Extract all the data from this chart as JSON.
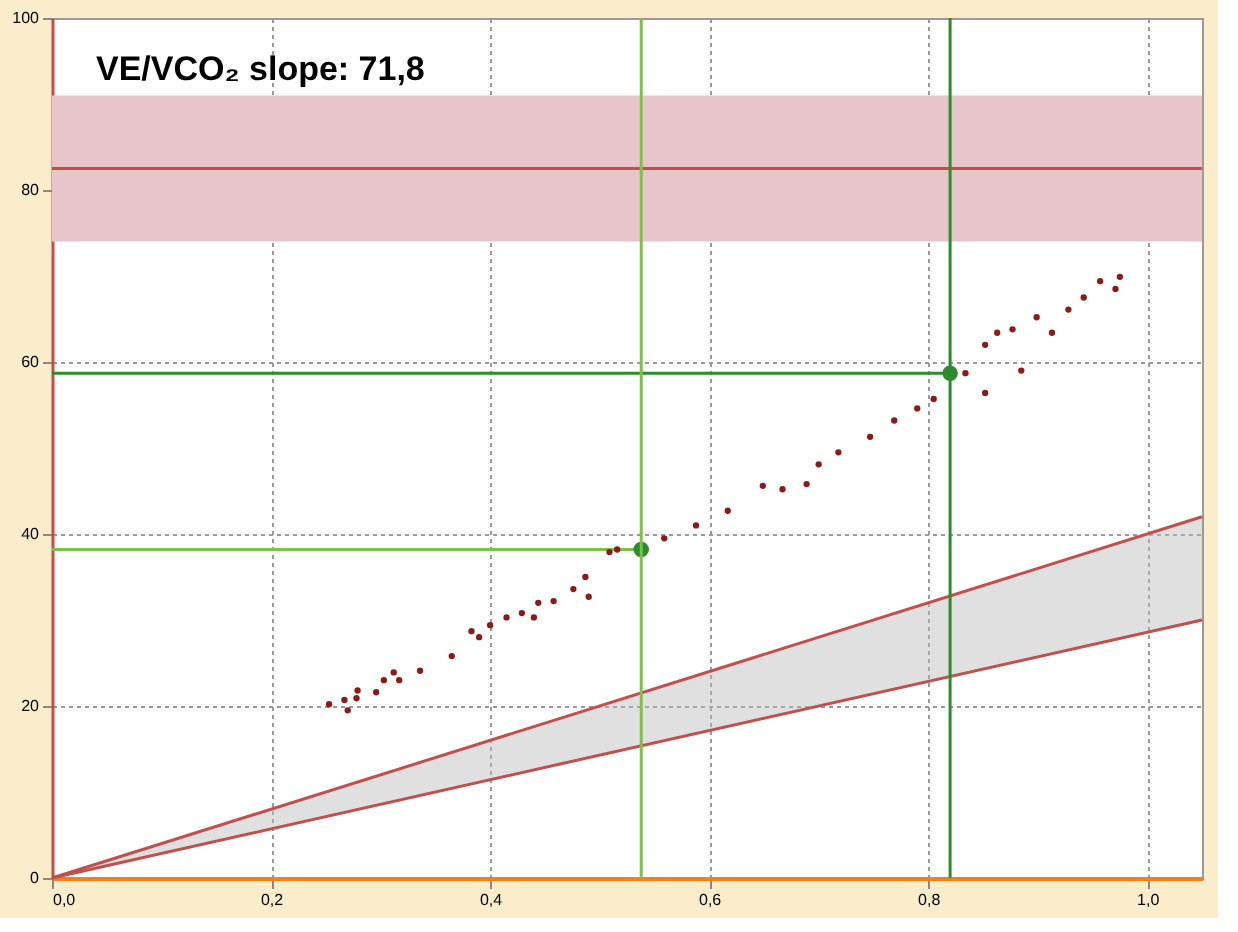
{
  "chart_data": {
    "type": "scatter",
    "annotations": [
      "VE/VCO₂ slope: 71,8"
    ],
    "xlim": [
      0,
      1.05
    ],
    "ylim": [
      0,
      100
    ],
    "xticks": [
      {
        "value": 0,
        "label": "0,0"
      },
      {
        "value": 0.2,
        "label": "0,2"
      },
      {
        "value": 0.4,
        "label": "0,4"
      },
      {
        "value": 0.6,
        "label": "0,6"
      },
      {
        "value": 0.8,
        "label": "0,8"
      },
      {
        "value": 1.0,
        "label": "1,0"
      }
    ],
    "yticks": [
      0,
      20,
      40,
      60,
      80,
      100
    ],
    "grid": true,
    "bands": [
      {
        "axis": "y",
        "from": 74,
        "to": 91,
        "color": "#e6c6ca"
      }
    ],
    "ref_lines": [
      {
        "axis": "y",
        "value": 82.5,
        "color": "#c0504d"
      },
      {
        "axis": "x",
        "value": 0.538,
        "color": "#7dc242"
      },
      {
        "axis": "x",
        "value": 0.82,
        "color": "#2e8b2e"
      }
    ],
    "series": [
      {
        "type": "line",
        "color": "#c0504d",
        "x": [
          0,
          1.05
        ],
        "values": [
          0,
          42
        ],
        "marker": "none",
        "lower": [
          0,
          30
        ],
        "upper": [
          0,
          42
        ]
      },
      {
        "type": "line",
        "color": "#c0504d",
        "x": [
          0,
          1.05
        ],
        "values": [
          0,
          30
        ],
        "marker": "none"
      },
      {
        "type": "line",
        "color": "#7dc242",
        "x": [
          0,
          0.538
        ],
        "values": [
          38.2,
          38.2
        ],
        "marker": "none"
      },
      {
        "type": "line",
        "color": "#2e8b2e",
        "x": [
          0,
          0.82
        ],
        "values": [
          58.7,
          58.7
        ],
        "marker": "none"
      },
      {
        "color": "#8b1a1a",
        "marker": "circle",
        "x": [
          0.253,
          0.267,
          0.27,
          0.278,
          0.279,
          0.296,
          0.303,
          0.312,
          0.317,
          0.336,
          0.365,
          0.383,
          0.39,
          0.4,
          0.415,
          0.429,
          0.44,
          0.444,
          0.458,
          0.476,
          0.49,
          0.487,
          0.509,
          0.516,
          0.559,
          0.588,
          0.617,
          0.649,
          0.667,
          0.689,
          0.7,
          0.718,
          0.747,
          0.769,
          0.79,
          0.805,
          0.834,
          0.852,
          0.852,
          0.863,
          0.877,
          0.885,
          0.899,
          0.913,
          0.928,
          0.942,
          0.957,
          0.971,
          0.975
        ],
        "values": [
          20.2,
          20.7,
          19.5,
          20.9,
          21.8,
          21.6,
          23,
          23.9,
          23,
          24.1,
          25.8,
          28.7,
          28,
          29.4,
          30.3,
          30.8,
          30.3,
          32,
          32.2,
          33.6,
          32.7,
          35,
          37.9,
          38.2,
          39.5,
          41,
          42.7,
          45.6,
          45.2,
          45.8,
          48.1,
          49.5,
          51.3,
          53.2,
          54.6,
          55.7,
          58.7,
          56.4,
          62,
          63.4,
          63.8,
          59,
          65.2,
          63.4,
          66.1,
          67.5,
          69.4,
          68.5,
          69.9
        ]
      },
      {
        "color": "#2e8b2e",
        "marker": "circle",
        "x": [
          0.538,
          0.82
        ],
        "values": [
          38.2,
          58.7
        ]
      }
    ]
  }
}
